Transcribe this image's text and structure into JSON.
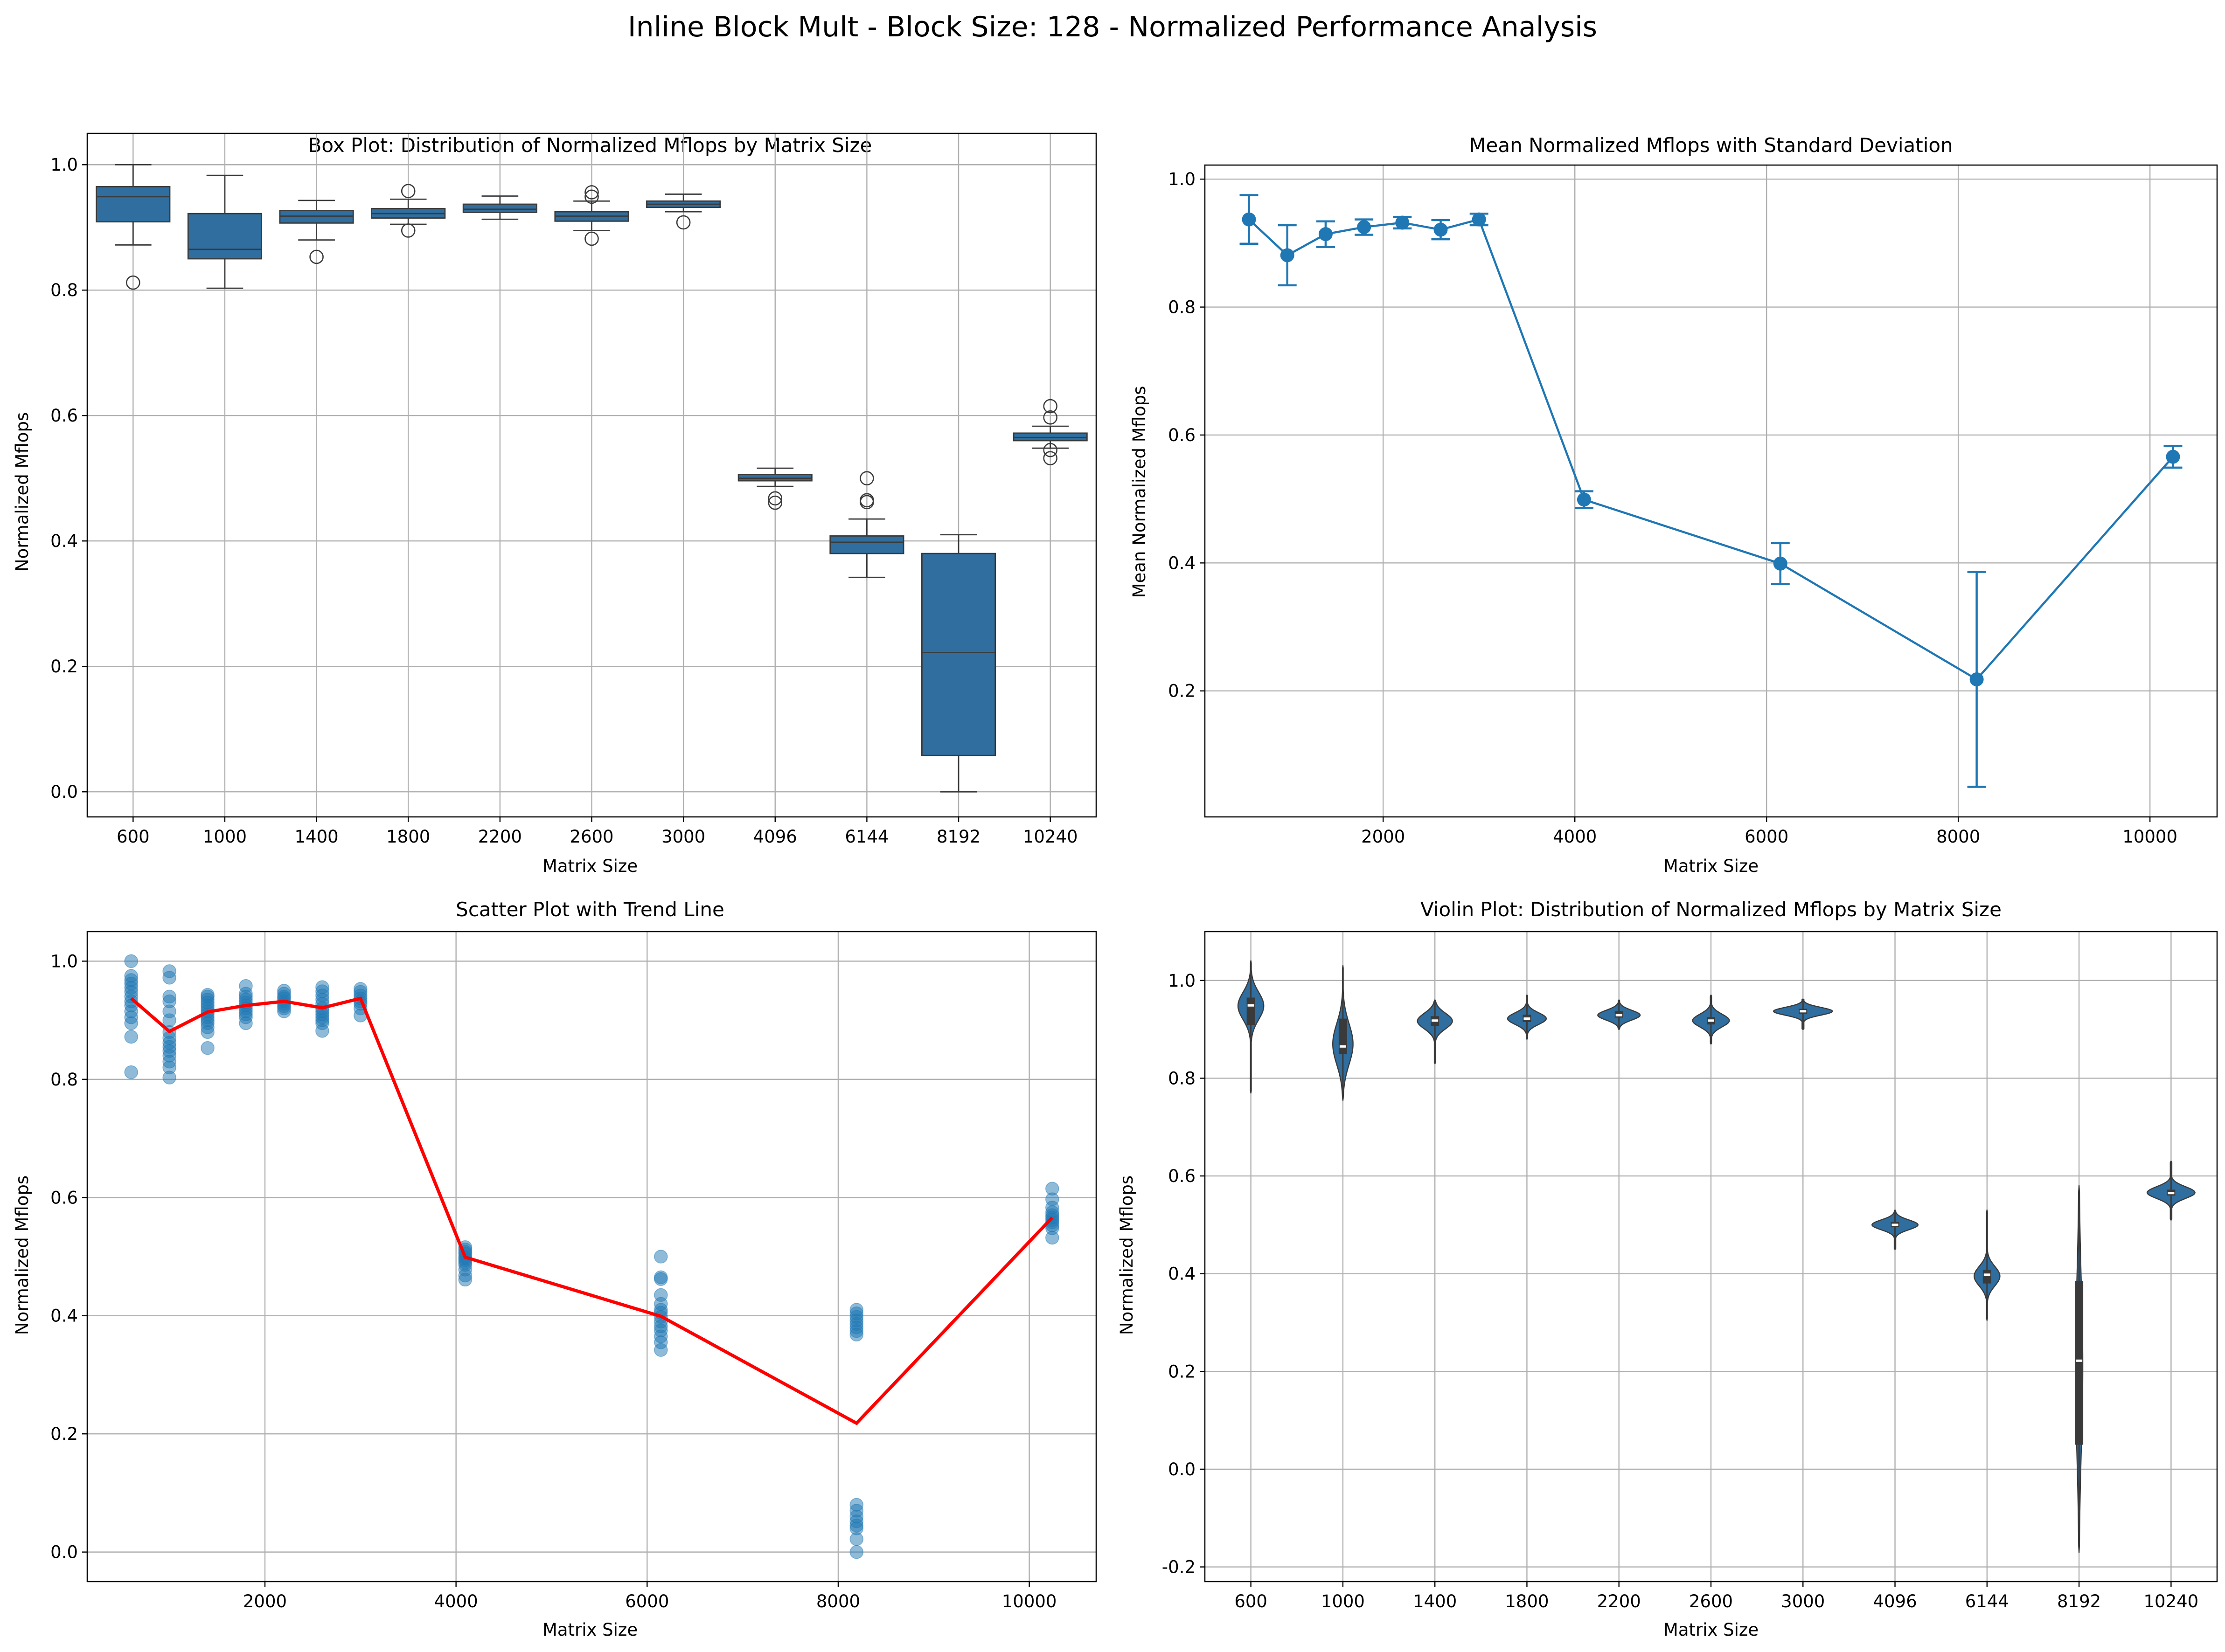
{
  "figure": {
    "suptitle": "Inline Block Mult - Block Size: 128 - Normalized Performance Analysis"
  },
  "colors": {
    "box": "#2f6e9f",
    "mean": "#1f77b4",
    "scatter": "#1f77b4",
    "trend": "#ff0000",
    "violin": "#2f6e9f",
    "grid": "#b0b0b0",
    "inner": "#3a3a3a"
  },
  "chart_data": [
    {
      "id": "box",
      "type": "box",
      "title": "Box Plot: Distribution of Normalized Mflops by Matrix Size",
      "xlabel": "Matrix Size",
      "ylabel": "Normalized Mflops",
      "categories": [
        "600",
        "1000",
        "1400",
        "1800",
        "2200",
        "2600",
        "3000",
        "4096",
        "6144",
        "8192",
        "10240"
      ],
      "ylim": [
        -0.04,
        1.05
      ],
      "yticks": [
        0.0,
        0.2,
        0.4,
        0.6,
        0.8,
        1.0
      ],
      "grid": true,
      "boxes": [
        {
          "whislo": 0.872,
          "q1": 0.909,
          "med": 0.949,
          "q3": 0.965,
          "whishi": 1.0,
          "fliers": [
            0.812
          ]
        },
        {
          "whislo": 0.803,
          "q1": 0.85,
          "med": 0.865,
          "q3": 0.922,
          "whishi": 0.983,
          "fliers": []
        },
        {
          "whislo": 0.88,
          "q1": 0.907,
          "med": 0.918,
          "q3": 0.927,
          "whishi": 0.943,
          "fliers": [
            0.853
          ]
        },
        {
          "whislo": 0.905,
          "q1": 0.915,
          "med": 0.922,
          "q3": 0.93,
          "whishi": 0.945,
          "fliers": [
            0.958,
            0.895
          ]
        },
        {
          "whislo": 0.913,
          "q1": 0.924,
          "med": 0.929,
          "q3": 0.937,
          "whishi": 0.95,
          "fliers": []
        },
        {
          "whislo": 0.895,
          "q1": 0.91,
          "med": 0.918,
          "q3": 0.925,
          "whishi": 0.942,
          "fliers": [
            0.956,
            0.949,
            0.882
          ]
        },
        {
          "whislo": 0.925,
          "q1": 0.932,
          "med": 0.937,
          "q3": 0.942,
          "whishi": 0.953,
          "fliers": [
            0.908
          ]
        },
        {
          "whislo": 0.487,
          "q1": 0.496,
          "med": 0.5,
          "q3": 0.506,
          "whishi": 0.516,
          "fliers": [
            0.468,
            0.461
          ]
        },
        {
          "whislo": 0.342,
          "q1": 0.38,
          "med": 0.398,
          "q3": 0.408,
          "whishi": 0.435,
          "fliers": [
            0.5,
            0.465,
            0.462
          ]
        },
        {
          "whislo": 0.0,
          "q1": 0.058,
          "med": 0.222,
          "q3": 0.38,
          "whishi": 0.41,
          "fliers": []
        },
        {
          "whislo": 0.548,
          "q1": 0.56,
          "med": 0.565,
          "q3": 0.572,
          "whishi": 0.583,
          "fliers": [
            0.615,
            0.597,
            0.545,
            0.532
          ]
        }
      ]
    },
    {
      "id": "mean",
      "type": "line",
      "title": "Mean Normalized Mflops with Standard Deviation",
      "xlabel": "Matrix Size",
      "ylabel": "Mean Normalized Mflops",
      "xlim": [
        140,
        10700
      ],
      "ylim": [
        0.003,
        1.022
      ],
      "xticks": [
        2000,
        4000,
        6000,
        8000,
        10000
      ],
      "yticks": [
        0.2,
        0.4,
        0.6,
        0.8,
        1.0
      ],
      "grid": true,
      "x": [
        600,
        1000,
        1400,
        1800,
        2200,
        2600,
        3000,
        4096,
        6144,
        8192,
        10240
      ],
      "y": [
        0.937,
        0.881,
        0.914,
        0.925,
        0.932,
        0.921,
        0.937,
        0.499,
        0.399,
        0.218,
        0.566
      ],
      "yerr": [
        0.038,
        0.047,
        0.02,
        0.012,
        0.009,
        0.015,
        0.009,
        0.013,
        0.032,
        0.168,
        0.017
      ]
    },
    {
      "id": "scatter",
      "type": "scatter",
      "title": "Scatter Plot with Trend Line",
      "xlabel": "Matrix Size",
      "ylabel": "Normalized Mflops",
      "xlim": [
        140,
        10700
      ],
      "ylim": [
        -0.05,
        1.05
      ],
      "xticks": [
        2000,
        4000,
        6000,
        8000,
        10000
      ],
      "yticks": [
        0.0,
        0.2,
        0.4,
        0.6,
        0.8,
        1.0
      ],
      "grid": true,
      "points": [
        {
          "x": 600,
          "ys": [
            1.0,
            0.975,
            0.968,
            0.962,
            0.955,
            0.948,
            0.94,
            0.932,
            0.925,
            0.915,
            0.905,
            0.895,
            0.872,
            0.812
          ]
        },
        {
          "x": 1000,
          "ys": [
            0.983,
            0.972,
            0.94,
            0.932,
            0.915,
            0.9,
            0.88,
            0.87,
            0.862,
            0.855,
            0.848,
            0.84,
            0.83,
            0.82,
            0.803
          ]
        },
        {
          "x": 1400,
          "ys": [
            0.943,
            0.94,
            0.935,
            0.93,
            0.925,
            0.92,
            0.915,
            0.91,
            0.905,
            0.9,
            0.895,
            0.888,
            0.88,
            0.853
          ]
        },
        {
          "x": 1800,
          "ys": [
            0.958,
            0.945,
            0.94,
            0.935,
            0.93,
            0.925,
            0.92,
            0.915,
            0.91,
            0.905,
            0.895
          ]
        },
        {
          "x": 2200,
          "ys": [
            0.95,
            0.945,
            0.94,
            0.937,
            0.932,
            0.928,
            0.924,
            0.92,
            0.915
          ]
        },
        {
          "x": 2600,
          "ys": [
            0.956,
            0.949,
            0.942,
            0.935,
            0.928,
            0.92,
            0.915,
            0.91,
            0.905,
            0.9,
            0.895,
            0.882
          ]
        },
        {
          "x": 3000,
          "ys": [
            0.953,
            0.948,
            0.942,
            0.937,
            0.932,
            0.928,
            0.92,
            0.908
          ]
        },
        {
          "x": 4096,
          "ys": [
            0.516,
            0.512,
            0.508,
            0.505,
            0.5,
            0.497,
            0.494,
            0.49,
            0.486,
            0.478,
            0.468,
            0.461
          ]
        },
        {
          "x": 6144,
          "ys": [
            0.5,
            0.465,
            0.462,
            0.435,
            0.42,
            0.41,
            0.405,
            0.398,
            0.39,
            0.382,
            0.375,
            0.365,
            0.355,
            0.342
          ]
        },
        {
          "x": 8192,
          "ys": [
            0.41,
            0.404,
            0.398,
            0.392,
            0.386,
            0.38,
            0.374,
            0.368,
            0.08,
            0.07,
            0.06,
            0.052,
            0.045,
            0.04,
            0.022,
            0.0
          ]
        },
        {
          "x": 10240,
          "ys": [
            0.615,
            0.597,
            0.583,
            0.575,
            0.57,
            0.566,
            0.562,
            0.558,
            0.553,
            0.548,
            0.532
          ]
        }
      ],
      "trend": {
        "x": [
          600,
          1000,
          1400,
          1800,
          2200,
          2600,
          3000,
          4096,
          6144,
          8192,
          10240
        ],
        "y": [
          0.937,
          0.881,
          0.914,
          0.925,
          0.932,
          0.921,
          0.937,
          0.499,
          0.399,
          0.218,
          0.566
        ]
      }
    },
    {
      "id": "violin",
      "type": "violin",
      "title": "Violin Plot: Distribution of Normalized Mflops by Matrix Size",
      "xlabel": "Matrix Size",
      "ylabel": "Normalized Mflops",
      "categories": [
        "600",
        "1000",
        "1400",
        "1800",
        "2200",
        "2600",
        "3000",
        "4096",
        "6144",
        "8192",
        "10240"
      ],
      "ylim": [
        -0.23,
        1.1
      ],
      "yticks": [
        -0.2,
        0.0,
        0.2,
        0.4,
        0.6,
        0.8,
        1.0
      ],
      "grid": true,
      "violins": [
        {
          "min": 0.77,
          "max": 1.04,
          "center": 0.948,
          "sigma": 0.028,
          "maxw": 0.28,
          "q1": 0.909,
          "med": 0.949,
          "q3": 0.965
        },
        {
          "min": 0.755,
          "max": 1.03,
          "center": 0.87,
          "sigma": 0.042,
          "maxw": 0.22,
          "q1": 0.85,
          "med": 0.865,
          "q3": 0.922
        },
        {
          "min": 0.83,
          "max": 0.96,
          "center": 0.917,
          "sigma": 0.016,
          "maxw": 0.38,
          "q1": 0.907,
          "med": 0.918,
          "q3": 0.927
        },
        {
          "min": 0.88,
          "max": 0.97,
          "center": 0.922,
          "sigma": 0.012,
          "maxw": 0.42,
          "q1": 0.915,
          "med": 0.922,
          "q3": 0.93
        },
        {
          "min": 0.9,
          "max": 0.96,
          "center": 0.929,
          "sigma": 0.01,
          "maxw": 0.46,
          "q1": 0.924,
          "med": 0.929,
          "q3": 0.937
        },
        {
          "min": 0.87,
          "max": 0.97,
          "center": 0.918,
          "sigma": 0.013,
          "maxw": 0.4,
          "q1": 0.91,
          "med": 0.918,
          "q3": 0.925
        },
        {
          "min": 0.9,
          "max": 0.962,
          "center": 0.937,
          "sigma": 0.008,
          "maxw": 0.64,
          "q1": 0.932,
          "med": 0.937,
          "q3": 0.942
        },
        {
          "min": 0.45,
          "max": 0.53,
          "center": 0.5,
          "sigma": 0.01,
          "maxw": 0.5,
          "q1": 0.496,
          "med": 0.5,
          "q3": 0.506
        },
        {
          "min": 0.305,
          "max": 0.53,
          "center": 0.395,
          "sigma": 0.02,
          "maxw": 0.28,
          "q1": 0.38,
          "med": 0.398,
          "q3": 0.408
        },
        {
          "min": -0.17,
          "max": 0.58,
          "center": 0.21,
          "sigma": 0.17,
          "maxw": 0.08,
          "q1": 0.05,
          "med": 0.222,
          "q3": 0.385
        },
        {
          "min": 0.51,
          "max": 0.63,
          "center": 0.566,
          "sigma": 0.012,
          "maxw": 0.52,
          "q1": 0.56,
          "med": 0.565,
          "q3": 0.572
        }
      ]
    }
  ]
}
